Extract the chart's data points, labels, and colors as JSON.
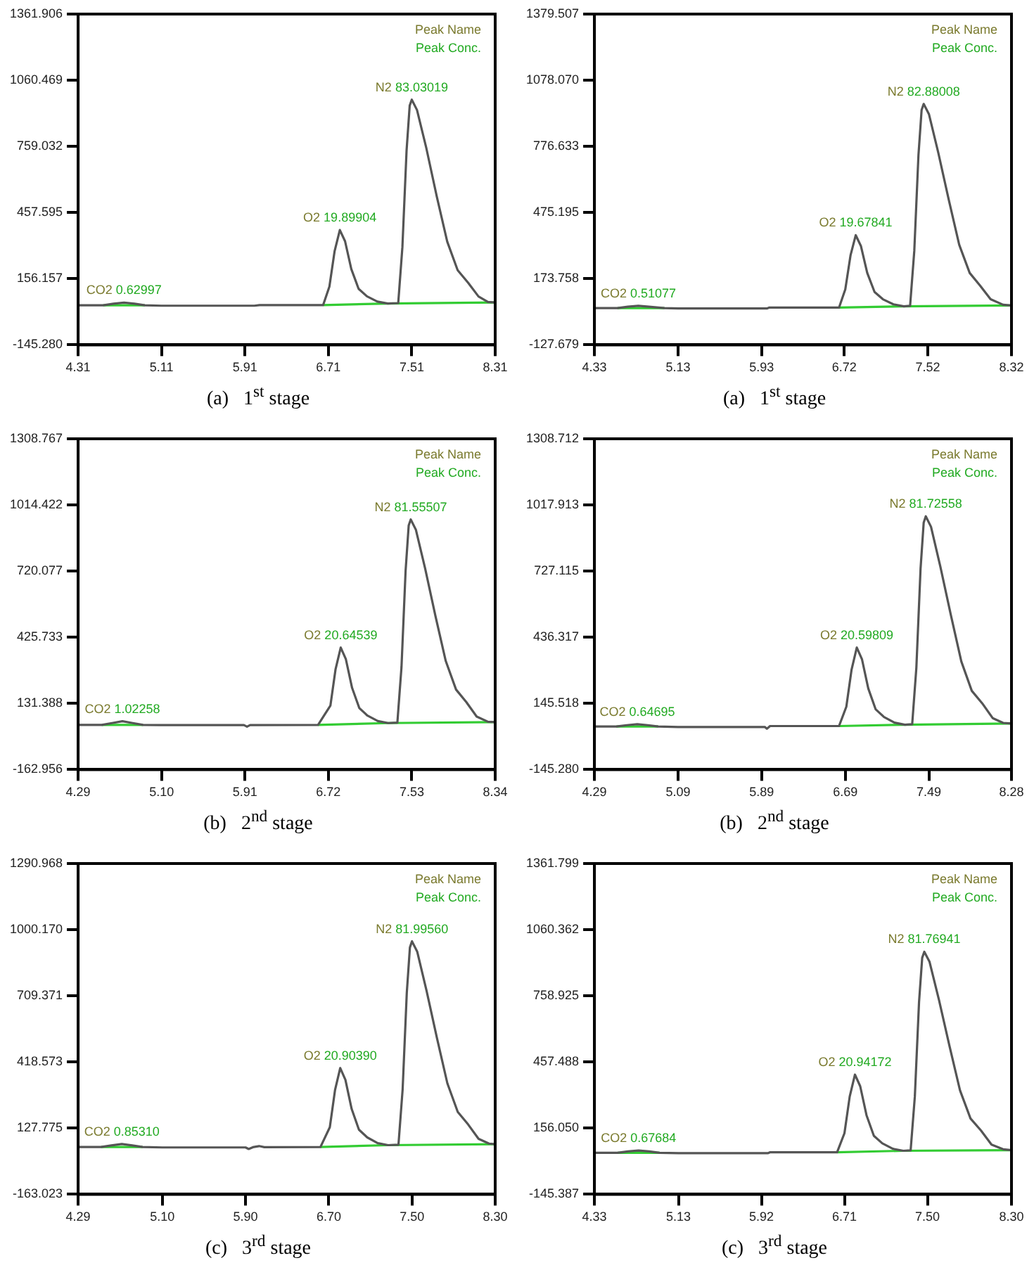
{
  "chart_data": [
    {
      "type": "line",
      "title": "(a)   1$^{st}$ stage",
      "xlim": [
        4.31,
        8.31
      ],
      "ylim": [
        -145.28,
        1361.906
      ],
      "xticks": [
        {
          "value": 4.31,
          "label": "4.31"
        },
        {
          "value": 5.11,
          "label": "5.11"
        },
        {
          "value": 5.91,
          "label": "5.91"
        },
        {
          "value": 6.71,
          "label": "6.71"
        },
        {
          "value": 7.51,
          "label": "7.51"
        },
        {
          "value": 8.31,
          "label": "8.31"
        }
      ],
      "yticks": [
        {
          "value": -145.28,
          "label": "-145.280"
        },
        {
          "value": 156.157,
          "label": "156.157"
        },
        {
          "value": 457.595,
          "label": "457.595"
        },
        {
          "value": 759.032,
          "label": "759.032"
        },
        {
          "value": 1060.469,
          "label": "1060.469"
        },
        {
          "value": 1361.906,
          "label": "1361.906"
        }
      ],
      "series": [
        {
          "color": "#555555",
          "x": [
            4.31,
            4.55,
            4.65,
            4.75,
            4.85,
            4.95,
            5.11,
            6.0,
            6.05,
            6.66,
            6.72,
            6.77,
            6.82,
            6.87,
            6.93,
            7.0,
            7.08,
            7.18,
            7.28,
            7.38,
            7.42,
            7.46,
            7.49,
            7.51,
            7.56,
            7.65,
            7.75,
            7.85,
            7.95,
            8.05,
            8.15,
            8.24,
            8.31
          ],
          "values": [
            35,
            35,
            42,
            47,
            42,
            35,
            33,
            33,
            36,
            36,
            120,
            282,
            378,
            327,
            200,
            110,
            76,
            52,
            43,
            45,
            300,
            740,
            945,
            972,
            925,
            750,
            530,
            325,
            195,
            138,
            75,
            50,
            48
          ]
        },
        {
          "color": "#33cc33",
          "x": [
            4.55,
            4.95,
            5.0,
            6.66,
            7.28,
            8.31
          ],
          "values": [
            35,
            35,
            null,
            36,
            43,
            48
          ]
        }
      ],
      "annotations": [
        "Peak Name",
        "Peak Conc.",
        {
          "text": "CO2 0.62997",
          "x": 4.75,
          "y": 47
        },
        {
          "text": "O2 19.89904",
          "x": 6.82,
          "y": 378
        },
        {
          "text": "N2 83.03019",
          "x": 7.51,
          "y": 972
        }
      ]
    },
    {
      "type": "line",
      "title": "(a)   1$^{st}$ stage",
      "xlim": [
        4.33,
        8.32
      ],
      "ylim": [
        -127.679,
        1379.507
      ],
      "xticks": [
        {
          "value": 4.33,
          "label": "4.33"
        },
        {
          "value": 5.13,
          "label": "5.13"
        },
        {
          "value": 5.93,
          "label": "5.93"
        },
        {
          "value": 6.72,
          "label": "6.72"
        },
        {
          "value": 7.52,
          "label": "7.52"
        },
        {
          "value": 8.32,
          "label": "8.32"
        }
      ],
      "yticks": [
        {
          "value": -127.679,
          "label": "-127.679"
        },
        {
          "value": 173.758,
          "label": "173.758"
        },
        {
          "value": 475.195,
          "label": "475.195"
        },
        {
          "value": 776.633,
          "label": "776.633"
        },
        {
          "value": 1078.07,
          "label": "1078.070"
        },
        {
          "value": 1379.507,
          "label": "1379.507"
        }
      ],
      "series": [
        {
          "color": "#555555",
          "x": [
            4.33,
            4.55,
            4.65,
            4.75,
            4.85,
            5.0,
            5.13,
            5.98,
            6.0,
            6.67,
            6.73,
            6.78,
            6.83,
            6.88,
            6.94,
            7.01,
            7.09,
            7.19,
            7.29,
            7.35,
            7.39,
            7.43,
            7.46,
            7.48,
            7.53,
            7.62,
            7.72,
            7.82,
            7.92,
            8.02,
            8.12,
            8.24,
            8.32
          ],
          "values": [
            40,
            40,
            46,
            50,
            46,
            40,
            38,
            38,
            42,
            42,
            125,
            280,
            372,
            322,
            200,
            113,
            80,
            57,
            48,
            50,
            300,
            737,
            942,
            970,
            924,
            747,
            533,
            328,
            200,
            142,
            80,
            55,
            52
          ]
        },
        {
          "color": "#33cc33",
          "x": [
            4.55,
            5.0,
            5.05,
            6.67,
            7.29,
            8.32
          ],
          "values": [
            40,
            40,
            null,
            42,
            48,
            52
          ]
        }
      ],
      "annotations": [
        "Peak Name",
        "Peak Conc.",
        {
          "text": "CO2 0.51077",
          "x": 4.75,
          "y": 50
        },
        {
          "text": "O2 19.67841",
          "x": 6.83,
          "y": 372
        },
        {
          "text": "N2 82.88008",
          "x": 7.48,
          "y": 970
        }
      ]
    },
    {
      "type": "line",
      "title": "(b)   2$^{nd}$ stage",
      "xlim": [
        4.29,
        8.34
      ],
      "ylim": [
        -162.956,
        1308.767
      ],
      "xticks": [
        {
          "value": 4.29,
          "label": "4.29"
        },
        {
          "value": 5.1,
          "label": "5.10"
        },
        {
          "value": 5.91,
          "label": "5.91"
        },
        {
          "value": 6.72,
          "label": "6.72"
        },
        {
          "value": 7.53,
          "label": "7.53"
        },
        {
          "value": 8.34,
          "label": "8.34"
        }
      ],
      "yticks": [
        {
          "value": -162.956,
          "label": "-162.956"
        },
        {
          "value": 131.388,
          "label": "131.388"
        },
        {
          "value": 425.733,
          "label": "425.733"
        },
        {
          "value": 720.077,
          "label": "720.077"
        },
        {
          "value": 1014.422,
          "label": "1014.422"
        },
        {
          "value": 1308.767,
          "label": "1308.767"
        }
      ],
      "series": [
        {
          "color": "#555555",
          "x": [
            4.29,
            4.52,
            4.62,
            4.72,
            4.82,
            4.92,
            5.1,
            5.9,
            5.93,
            5.96,
            6.62,
            6.74,
            6.79,
            6.84,
            6.89,
            6.95,
            7.02,
            7.1,
            7.2,
            7.3,
            7.39,
            7.43,
            7.47,
            7.5,
            7.52,
            7.57,
            7.66,
            7.76,
            7.86,
            7.96,
            8.06,
            8.16,
            8.27,
            8.34
          ],
          "values": [
            36,
            36,
            44,
            52,
            44,
            36,
            35,
            35,
            28,
            35,
            36,
            122,
            284,
            380,
            328,
            201,
            111,
            77,
            53,
            44,
            46,
            292,
            722,
            923,
            950,
            904,
            731,
            520,
            320,
            193,
            137,
            73,
            50,
            48
          ]
        },
        {
          "color": "#33cc33",
          "x": [
            4.52,
            4.92,
            4.97,
            6.62,
            7.3,
            8.34
          ],
          "values": [
            36,
            36,
            null,
            36,
            44,
            48
          ]
        }
      ],
      "annotations": [
        "Peak Name",
        "Peak Conc.",
        {
          "text": "CO2 1.02258",
          "x": 4.72,
          "y": 52
        },
        {
          "text": "O2 20.64539",
          "x": 6.84,
          "y": 380
        },
        {
          "text": "N2 81.55507",
          "x": 7.52,
          "y": 950
        }
      ]
    },
    {
      "type": "line",
      "title": "(b)   2$^{nd}$ stage",
      "xlim": [
        4.29,
        8.28
      ],
      "ylim": [
        -145.28,
        1308.712
      ],
      "xticks": [
        {
          "value": 4.29,
          "label": "4.29"
        },
        {
          "value": 5.09,
          "label": "5.09"
        },
        {
          "value": 5.89,
          "label": "5.89"
        },
        {
          "value": 6.69,
          "label": "6.69"
        },
        {
          "value": 7.49,
          "label": "7.49"
        },
        {
          "value": 8.28,
          "label": "8.28"
        }
      ],
      "yticks": [
        {
          "value": -145.28,
          "label": "-145.280"
        },
        {
          "value": 145.518,
          "label": "145.518"
        },
        {
          "value": 436.317,
          "label": "436.317"
        },
        {
          "value": 727.115,
          "label": "727.115"
        },
        {
          "value": 1017.913,
          "label": "1017.913"
        },
        {
          "value": 1308.712,
          "label": "1308.712"
        }
      ],
      "series": [
        {
          "color": "#555555",
          "x": [
            4.29,
            4.5,
            4.6,
            4.7,
            4.8,
            4.9,
            5.09,
            5.92,
            5.94,
            5.97,
            6.63,
            6.7,
            6.75,
            6.8,
            6.85,
            6.91,
            6.98,
            7.06,
            7.16,
            7.26,
            7.33,
            7.37,
            7.41,
            7.44,
            7.46,
            7.51,
            7.6,
            7.7,
            7.8,
            7.9,
            8.0,
            8.1,
            8.2,
            8.28
          ],
          "values": [
            44,
            44,
            50,
            54,
            50,
            44,
            42,
            42,
            34,
            46,
            46,
            131,
            294,
            391,
            339,
            211,
            120,
            86,
            61,
            52,
            54,
            303,
            737,
            940,
            968,
            922,
            746,
            534,
            330,
            201,
            146,
            81,
            60,
            57
          ]
        },
        {
          "color": "#33cc33",
          "x": [
            4.5,
            4.9,
            4.95,
            6.63,
            7.26,
            8.28
          ],
          "values": [
            44,
            44,
            null,
            46,
            52,
            57
          ]
        }
      ],
      "annotations": [
        "Peak Name",
        "Peak Conc.",
        {
          "text": "CO2 0.64695",
          "x": 4.7,
          "y": 54
        },
        {
          "text": "O2 20.59809",
          "x": 6.8,
          "y": 391
        },
        {
          "text": "N2 81.72558",
          "x": 7.46,
          "y": 968
        }
      ]
    },
    {
      "type": "line",
      "title": "(c)   3$^{rd}$ stage",
      "xlim": [
        4.29,
        8.3
      ],
      "ylim": [
        -163.023,
        1290.968
      ],
      "xticks": [
        {
          "value": 4.29,
          "label": "4.29"
        },
        {
          "value": 5.1,
          "label": "5.10"
        },
        {
          "value": 5.9,
          "label": "5.90"
        },
        {
          "value": 6.7,
          "label": "6.70"
        },
        {
          "value": 7.5,
          "label": "7.50"
        },
        {
          "value": 8.3,
          "label": "8.30"
        }
      ],
      "yticks": [
        {
          "value": -163.023,
          "label": "-163.023"
        },
        {
          "value": 127.775,
          "label": "127.775"
        },
        {
          "value": 418.573,
          "label": "418.573"
        },
        {
          "value": 709.371,
          "label": "709.371"
        },
        {
          "value": 1000.17,
          "label": "1000.170"
        },
        {
          "value": 1290.968,
          "label": "1290.968"
        }
      ],
      "series": [
        {
          "color": "#555555",
          "x": [
            4.29,
            4.51,
            4.61,
            4.71,
            4.81,
            4.91,
            5.1,
            5.9,
            5.93,
            5.97,
            6.03,
            6.08,
            6.62,
            6.71,
            6.76,
            6.81,
            6.86,
            6.92,
            6.99,
            7.07,
            7.17,
            7.27,
            7.37,
            7.41,
            7.45,
            7.48,
            7.5,
            7.55,
            7.64,
            7.74,
            7.84,
            7.94,
            8.04,
            8.14,
            8.24,
            8.3
          ],
          "values": [
            45,
            45,
            52,
            58,
            52,
            45,
            43,
            43,
            36,
            44,
            49,
            44,
            45,
            132,
            295,
            392,
            340,
            212,
            121,
            87,
            62,
            53,
            55,
            298,
            723,
            922,
            949,
            904,
            732,
            524,
            325,
            199,
            144,
            81,
            60,
            57
          ]
        },
        {
          "color": "#33cc33",
          "x": [
            4.51,
            4.91,
            4.96,
            6.62,
            7.27,
            8.3
          ],
          "values": [
            45,
            45,
            null,
            45,
            53,
            57
          ]
        }
      ],
      "annotations": [
        "Peak Name",
        "Peak Conc.",
        {
          "text": "CO2 0.85310",
          "x": 4.71,
          "y": 58
        },
        {
          "text": "O2 20.90390",
          "x": 6.81,
          "y": 392
        },
        {
          "text": "N2 81.99560",
          "x": 7.5,
          "y": 949
        }
      ]
    },
    {
      "type": "line",
      "title": "(c)   3$^{rd}$ stage",
      "xlim": [
        4.33,
        8.3
      ],
      "ylim": [
        -145.387,
        1361.799
      ],
      "xticks": [
        {
          "value": 4.33,
          "label": "4.33"
        },
        {
          "value": 5.13,
          "label": "5.13"
        },
        {
          "value": 5.92,
          "label": "5.92"
        },
        {
          "value": 6.71,
          "label": "6.71"
        },
        {
          "value": 7.5,
          "label": "7.50"
        },
        {
          "value": 8.3,
          "label": "8.30"
        }
      ],
      "yticks": [
        {
          "value": -145.387,
          "label": "-145.387"
        },
        {
          "value": 156.05,
          "label": "156.050"
        },
        {
          "value": 457.488,
          "label": "457.488"
        },
        {
          "value": 758.925,
          "label": "758.925"
        },
        {
          "value": 1060.362,
          "label": "1060.362"
        },
        {
          "value": 1361.799,
          "label": "1361.799"
        }
      ],
      "series": [
        {
          "color": "#555555",
          "x": [
            4.33,
            4.55,
            4.65,
            4.75,
            4.85,
            4.95,
            5.13,
            5.98,
            6.0,
            6.64,
            6.71,
            6.76,
            6.81,
            6.86,
            6.92,
            6.99,
            7.07,
            7.17,
            7.27,
            7.34,
            7.38,
            7.42,
            7.45,
            7.47,
            7.52,
            7.61,
            7.71,
            7.81,
            7.91,
            8.01,
            8.11,
            8.22,
            8.3
          ],
          "values": [
            44,
            44,
            50,
            54,
            50,
            44,
            42,
            42,
            46,
            46,
            133,
            300,
            400,
            347,
            215,
            121,
            87,
            62,
            53,
            55,
            300,
            731,
            932,
            960,
            914,
            740,
            530,
            328,
            200,
            145,
            81,
            60,
            56
          ]
        },
        {
          "color": "#33cc33",
          "x": [
            4.55,
            4.95,
            5.0,
            6.64,
            7.27,
            8.3
          ],
          "values": [
            44,
            44,
            null,
            46,
            53,
            56
          ]
        }
      ],
      "annotations": [
        "Peak Name",
        "Peak Conc.",
        {
          "text": "CO2 0.67684",
          "x": 4.75,
          "y": 54
        },
        {
          "text": "O2 20.94172",
          "x": 6.81,
          "y": 400
        },
        {
          "text": "N2 81.76941",
          "x": 7.47,
          "y": 960
        }
      ]
    }
  ]
}
